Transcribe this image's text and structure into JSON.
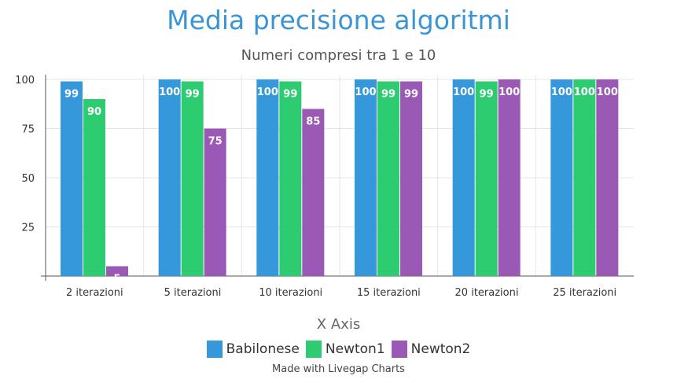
{
  "chart_data": {
    "type": "bar",
    "title": "Media precisione algoritmi",
    "subtitle": "Numeri compresi tra 1 e 10",
    "xlabel": "X Axis",
    "ylabel": "",
    "categories": [
      "2 iterazioni",
      "5 iterazioni",
      "10 iterazioni",
      "15 iterazioni",
      "20 iterazioni",
      "25 iterazioni"
    ],
    "series": [
      {
        "name": "Babilonese",
        "color": "#3498db",
        "values": [
          99,
          100,
          100,
          100,
          100,
          100
        ]
      },
      {
        "name": "Newton1",
        "color": "#2ecc71",
        "values": [
          90,
          99,
          99,
          99,
          99,
          100
        ]
      },
      {
        "name": "Newton2",
        "color": "#9b59b6",
        "values": [
          5,
          75,
          85,
          99,
          100,
          100
        ]
      }
    ],
    "ylim": [
      0,
      100
    ],
    "yticks": [
      25,
      50,
      75,
      100
    ],
    "grid": true,
    "legend_position": "bottom-center"
  },
  "footer": {
    "credit": "Made with Livegap Charts"
  }
}
